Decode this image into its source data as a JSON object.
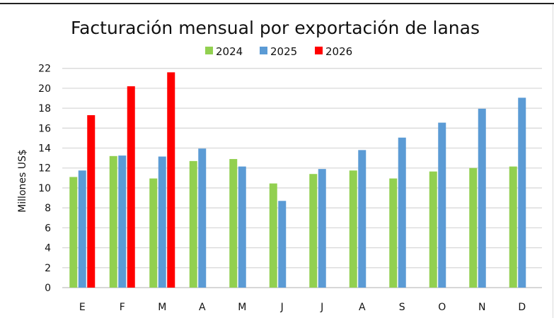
{
  "chart_data": {
    "type": "bar",
    "title": "Facturación mensual por exportación de lanas",
    "xlabel": "",
    "ylabel": "Millones US$",
    "ylim": [
      0,
      22
    ],
    "yticks": [
      "0",
      "2",
      "4",
      "6",
      "8",
      "10",
      "12",
      "14",
      "16",
      "18",
      "20",
      "22"
    ],
    "grid": true,
    "legend_position": "top-center",
    "categories": [
      "E",
      "F",
      "M",
      "A",
      "M",
      "J",
      "J",
      "A",
      "S",
      "O",
      "N",
      "D"
    ],
    "series": [
      {
        "name": "2024",
        "color": "#92D050",
        "values": [
          11.1,
          13.2,
          10.95,
          12.7,
          12.9,
          10.45,
          11.4,
          11.75,
          10.95,
          11.65,
          12.0,
          12.15
        ]
      },
      {
        "name": "2025",
        "color": "#5B9BD5",
        "values": [
          11.75,
          13.25,
          13.15,
          13.95,
          12.15,
          8.7,
          11.9,
          13.8,
          15.05,
          16.55,
          17.95,
          19.05
        ]
      },
      {
        "name": "2026",
        "color": "#FF0000",
        "values": [
          17.3,
          20.2,
          21.6,
          null,
          null,
          null,
          null,
          null,
          null,
          null,
          null,
          null
        ]
      }
    ]
  }
}
